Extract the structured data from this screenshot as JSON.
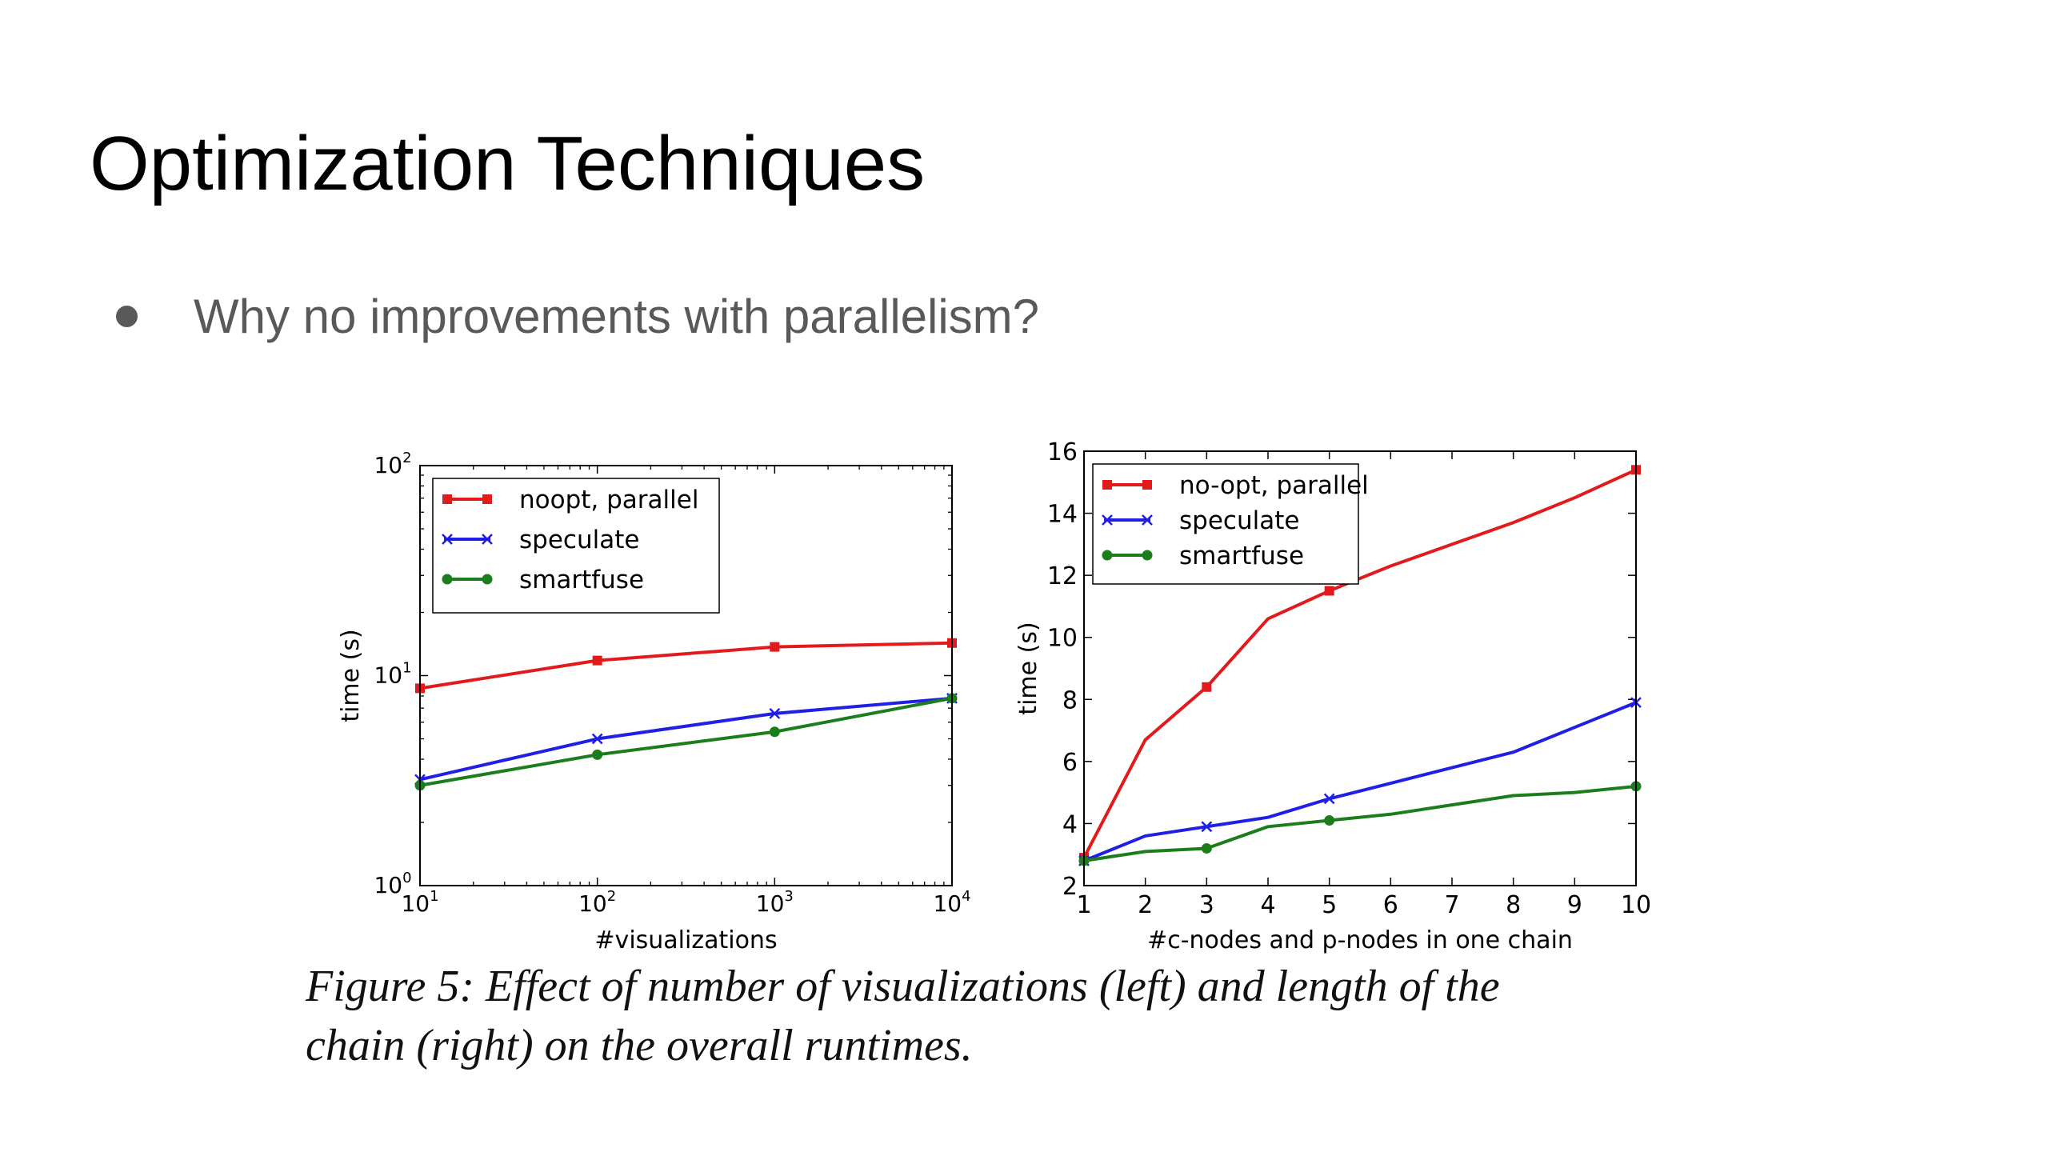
{
  "slide": {
    "title": "Optimization Techniques",
    "bullet": "Why no improvements with parallelism?"
  },
  "caption": {
    "line1": "Figure 5: Effect of number of visualizations (left) and length of the",
    "line2": "chain (right) on the overall runtimes."
  },
  "chart_data": [
    {
      "type": "line",
      "xscale": "log",
      "yscale": "log",
      "xlabel": "#visualizations",
      "ylabel": "time (s)",
      "xlim": [
        10,
        10000
      ],
      "ylim": [
        1,
        100
      ],
      "xticks": [
        {
          "value": 10,
          "base": "10",
          "exp": "1"
        },
        {
          "value": 100,
          "base": "10",
          "exp": "2"
        },
        {
          "value": 1000,
          "base": "10",
          "exp": "3"
        },
        {
          "value": 10000,
          "base": "10",
          "exp": "4"
        }
      ],
      "yticks": [
        {
          "value": 1,
          "base": "10",
          "exp": "0"
        },
        {
          "value": 10,
          "base": "10",
          "exp": "1"
        },
        {
          "value": 100,
          "base": "10",
          "exp": "2"
        }
      ],
      "legend_position": "top-left",
      "x": [
        10,
        100,
        1000,
        10000
      ],
      "series": [
        {
          "name": "noopt, parallel",
          "color": "#e31a1c",
          "marker": "square",
          "values": [
            8.7,
            11.8,
            13.7,
            14.3
          ]
        },
        {
          "name": "speculate",
          "color": "#1f1fe6",
          "marker": "x",
          "values": [
            3.2,
            5.0,
            6.6,
            7.8
          ]
        },
        {
          "name": "smartfuse",
          "color": "#1b7d1b",
          "marker": "circle",
          "values": [
            3.0,
            4.2,
            5.4,
            7.8
          ]
        }
      ]
    },
    {
      "type": "line",
      "xscale": "linear",
      "yscale": "linear",
      "xlabel": "#c-nodes and p-nodes in one chain",
      "ylabel": "time (s)",
      "xlim": [
        1,
        10
      ],
      "ylim": [
        2,
        16
      ],
      "xticks": [
        1,
        2,
        3,
        4,
        5,
        6,
        7,
        8,
        9,
        10
      ],
      "yticks": [
        2,
        4,
        6,
        8,
        10,
        12,
        14,
        16
      ],
      "legend_position": "top-left",
      "x": [
        1,
        2,
        3,
        4,
        5,
        6,
        7,
        8,
        9,
        10
      ],
      "series": [
        {
          "name": "no-opt, parallel",
          "color": "#e31a1c",
          "marker": "square",
          "marker_x": [
            1,
            3,
            5,
            10
          ],
          "values": [
            2.9,
            6.7,
            8.4,
            10.6,
            11.5,
            12.3,
            13.0,
            13.7,
            14.5,
            15.4
          ]
        },
        {
          "name": "speculate",
          "color": "#1f1fe6",
          "marker": "x",
          "marker_x": [
            1,
            3,
            5,
            10
          ],
          "values": [
            2.8,
            3.6,
            3.9,
            4.2,
            4.8,
            5.3,
            5.8,
            6.3,
            7.1,
            7.9
          ]
        },
        {
          "name": "smartfuse",
          "color": "#1b7d1b",
          "marker": "circle",
          "marker_x": [
            1,
            3,
            5,
            10
          ],
          "values": [
            2.8,
            3.1,
            3.2,
            3.9,
            4.1,
            4.3,
            4.6,
            4.9,
            5.0,
            5.2
          ]
        }
      ]
    }
  ]
}
